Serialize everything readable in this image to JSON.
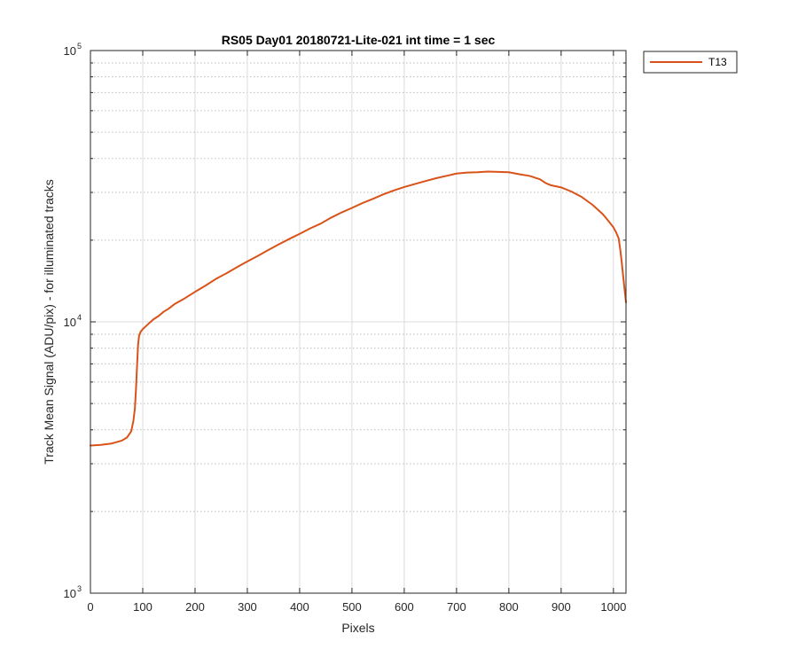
{
  "chart_data": {
    "type": "line",
    "title": "RS05 Day01 20180721-Lite-021 int time = 1 sec",
    "xlabel": "Pixels",
    "ylabel": "Track Mean Signal (ADU/pix) - for illuminated tracks",
    "xlim": [
      0,
      1024
    ],
    "ylim": [
      1000,
      100000
    ],
    "yscale": "log",
    "grid": "on",
    "minor_grid_y": "dotted",
    "x_ticks": [
      0,
      100,
      200,
      300,
      400,
      500,
      600,
      700,
      800,
      900,
      1000
    ],
    "y_ticks": [
      {
        "base": "10",
        "exp": "3",
        "value": 1000
      },
      {
        "base": "10",
        "exp": "4",
        "value": 10000
      },
      {
        "base": "10",
        "exp": "5",
        "value": 100000
      }
    ],
    "legend": {
      "placement": "outside-top-right"
    },
    "series": [
      {
        "name": "T13",
        "color": "#D95319",
        "x": [
          0,
          20,
          40,
          60,
          70,
          78,
          82,
          85,
          87,
          89,
          91,
          93,
          96,
          100,
          110,
          120,
          130,
          140,
          150,
          160,
          170,
          180,
          200,
          220,
          240,
          260,
          280,
          300,
          320,
          340,
          360,
          380,
          400,
          420,
          440,
          460,
          480,
          500,
          520,
          540,
          560,
          580,
          600,
          620,
          640,
          660,
          680,
          700,
          720,
          740,
          760,
          780,
          800,
          820,
          840,
          860,
          870,
          880,
          890,
          900,
          920,
          940,
          960,
          980,
          990,
          1000,
          1005,
          1010,
          1013,
          1016,
          1019,
          1022,
          1024
        ],
        "values": [
          3500,
          3520,
          3560,
          3650,
          3750,
          3950,
          4300,
          4800,
          5600,
          6800,
          8200,
          8900,
          9200,
          9400,
          9800,
          10200,
          10500,
          10900,
          11200,
          11600,
          11900,
          12200,
          12900,
          13600,
          14400,
          15100,
          15900,
          16700,
          17500,
          18400,
          19300,
          20200,
          21100,
          22100,
          23000,
          24200,
          25300,
          26300,
          27400,
          28400,
          29500,
          30500,
          31400,
          32200,
          33000,
          33800,
          34500,
          35200,
          35500,
          35600,
          35800,
          35700,
          35600,
          35000,
          34500,
          33500,
          32500,
          31900,
          31600,
          31300,
          30200,
          28800,
          27000,
          24900,
          23600,
          22300,
          21400,
          20300,
          18500,
          16500,
          14500,
          12800,
          11800
        ]
      }
    ]
  }
}
